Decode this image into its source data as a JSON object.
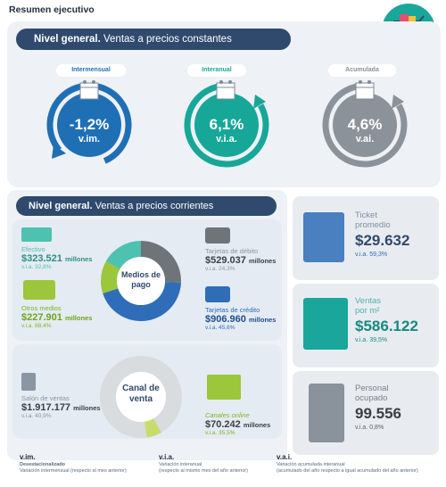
{
  "page_title": "Resumen ejecutivo",
  "section1": {
    "heading_bold": "Nivel general.",
    "heading_rest": " Ventas a precios constantes",
    "gauges": [
      {
        "pill": "Intermensual",
        "value": "-1,2%",
        "unit": "v.im.",
        "color": "#1f6fb5"
      },
      {
        "pill": "Interanual",
        "value": "6,1%",
        "unit": "v.i.a.",
        "color": "#17a799"
      },
      {
        "pill": "Acumulada",
        "value": "4,6%",
        "unit": "v.ai.",
        "color": "#8c9299"
      }
    ]
  },
  "section2": {
    "heading_bold": "Nivel general.",
    "heading_rest": " Ventas a precios corrientes",
    "medios_label": "Medios de pago",
    "canal_label": "Canal de venta",
    "efectivo": {
      "title": "Efectivo",
      "amount": "$323.521",
      "unit": "millones",
      "sub": "v.i.a. 32,8%"
    },
    "otros": {
      "title": "Otros medios",
      "amount": "$227.901",
      "unit": "millones",
      "sub": "v.i.a. 88,4%"
    },
    "debito": {
      "title": "Tarjetas de débito",
      "amount": "$529.037",
      "unit": "millones",
      "sub": "v.i.a. 24,3%"
    },
    "credito": {
      "title": "Tarjetas de crédito",
      "amount": "$906.960",
      "unit": "millones",
      "sub": "v.i.a. 45,6%"
    },
    "salon": {
      "title": "Salón de ventas",
      "amount": "$1.917.177",
      "unit": "millones",
      "sub": "v.i.a. 40,9%"
    },
    "online": {
      "title": "Canales online",
      "amount": "$70.242",
      "unit": "millones",
      "sub": "v.i.a. 35,5%"
    },
    "colors": {
      "green": "#9cc63b",
      "teal": "#4fc1b0",
      "blue": "#2f6db8",
      "gray": "#6f7479",
      "lime": "#c9dc6a",
      "lightgray": "#d8dcdf"
    }
  },
  "cards": {
    "ticket": {
      "title1": "Ticket",
      "title2": "promedio",
      "value": "$29.632",
      "sub": "v.i.a. 59,3%",
      "value_color": "#2f4a6d",
      "sub_color": "#2f6db8"
    },
    "ventas_m2": {
      "title1": "Ventas",
      "title2": "por m²",
      "value": "$586.122",
      "sub": "v.i.a. 39,5%",
      "value_color": "#178a80",
      "sub_color": "#178a80"
    },
    "personal": {
      "title1": "Personal",
      "title2": "ocupado",
      "value": "99.556",
      "sub": "v.i.a. 0,8%",
      "value_color": "#3a3f44",
      "sub_color": "#5a6068"
    }
  },
  "legend": [
    {
      "abbr": "v.im.",
      "line1": "Desestacionalizado",
      "line2": "Variación intermensual (respecto al mes anterior)"
    },
    {
      "abbr": "v.i.a.",
      "line1": "Variación interanual",
      "line2": "(respecto al mismo mes del año anterior)"
    },
    {
      "abbr": "v.a.i.",
      "line1": "Variación acumulada interanual",
      "line2": "(acumulado del año respecto a igual acumulado del año anterior)"
    }
  ]
}
